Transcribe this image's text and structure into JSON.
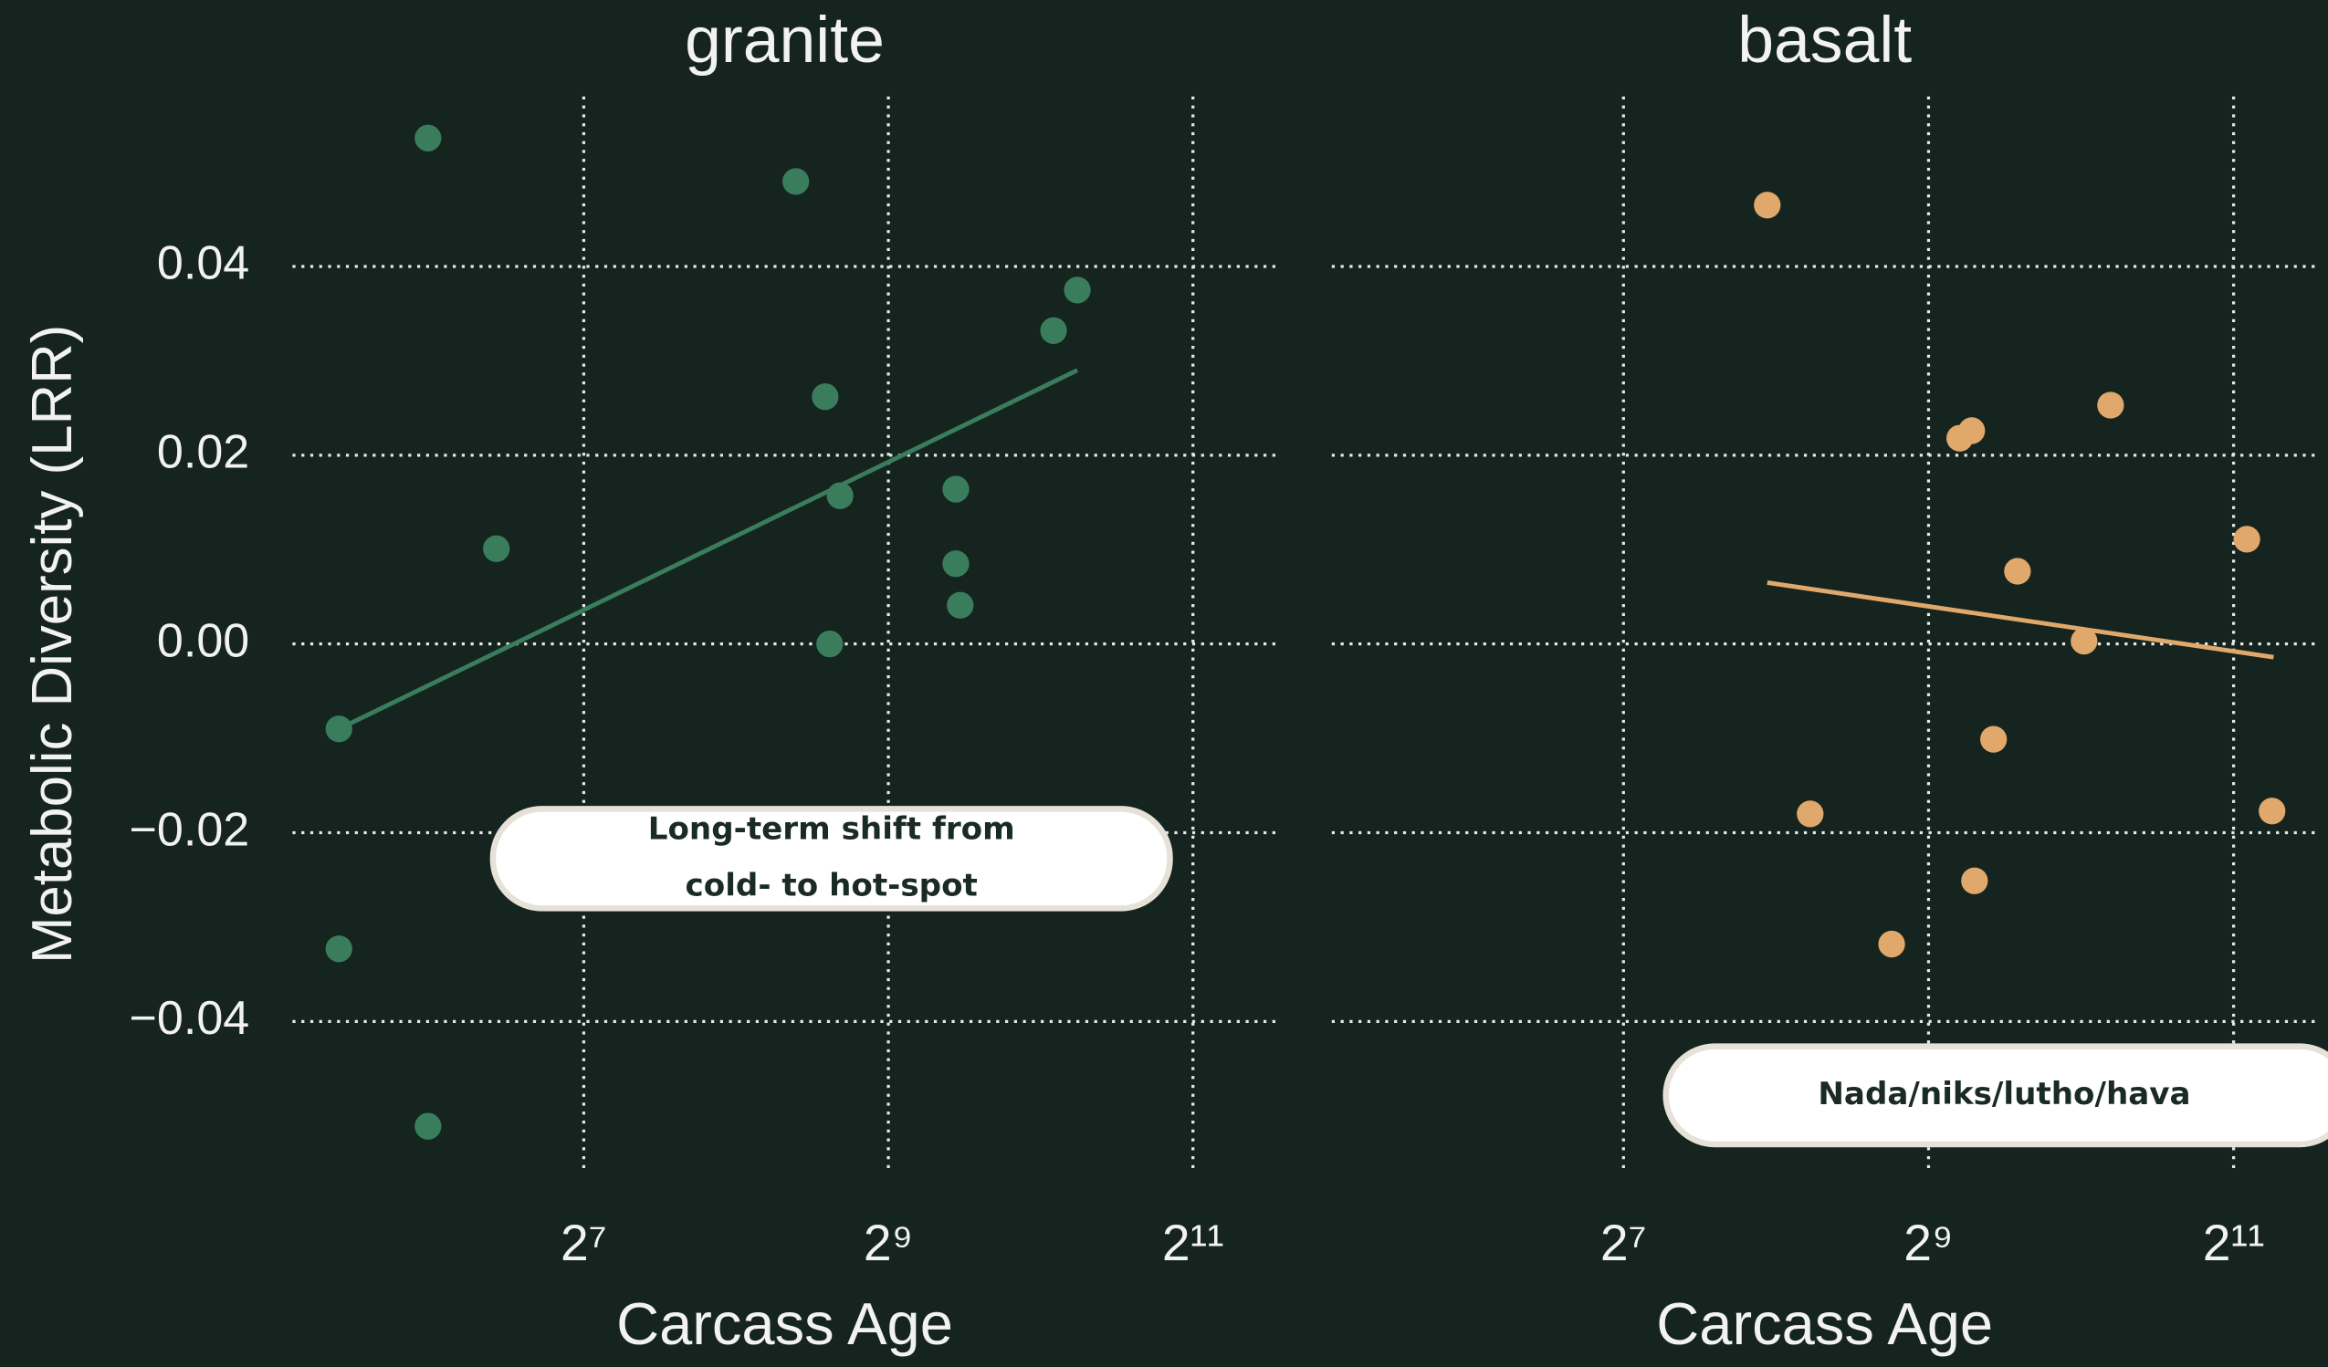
{
  "chart_data": [
    {
      "type": "scatter",
      "title": "granite",
      "xlabel": "Carcass Age",
      "ylabel": "Metabolic Diversity (LRR)",
      "x": [
        63,
        336,
        1210,
        1086,
        384,
        411,
        696,
        696,
        710,
        392,
        86,
        42,
        42,
        63
      ],
      "values": [
        0.0536,
        0.049,
        0.0375,
        0.0332,
        0.0262,
        0.0157,
        0.0164,
        0.0085,
        0.0041,
        0.0,
        0.0101,
        -0.009,
        -0.0323,
        -0.0511
      ],
      "color": "#3a7d5c",
      "trend": {
        "x": [
          42,
          1210
        ],
        "values": [
          -0.009,
          0.029
        ]
      },
      "xlog_base": 2,
      "xlim": [
        34,
        3000
      ],
      "ylim": [
        -0.056,
        0.058
      ],
      "xticks": [
        {
          "value": 128,
          "label": "2⁷"
        },
        {
          "value": 512,
          "label": "2⁹"
        },
        {
          "value": 2048,
          "label": "2¹¹"
        }
      ],
      "yticks": [
        {
          "value": -0.04,
          "label": "−0.04"
        },
        {
          "value": -0.02,
          "label": "−0.02"
        },
        {
          "value": 0,
          "label": "0.00"
        },
        0.02,
        0.04
      ],
      "show_ytick_labels": true,
      "grid": true,
      "annotation": [
        "Long-term shift from",
        "cold- to hot-spot"
      ]
    },
    {
      "type": "scatter",
      "title": "basalt",
      "xlabel": "Carcass Age",
      "x": [
        246,
        1171,
        590,
        623,
        2175,
        767,
        1038,
        688,
        299,
        2439,
        631,
        433
      ],
      "values": [
        0.0465,
        0.0253,
        0.0218,
        0.0226,
        0.0111,
        0.0077,
        0.0003,
        -0.0101,
        -0.018,
        -0.0177,
        -0.0251,
        -0.0318
      ],
      "color": "#e0a86a",
      "trend": {
        "x": [
          246,
          2456
        ],
        "values": [
          0.0065,
          -0.0014
        ]
      },
      "xlog_base": 2,
      "xlim": [
        34,
        3000
      ],
      "ylim": [
        -0.056,
        0.058
      ],
      "xticks": [
        {
          "value": 128,
          "label": "2⁷"
        },
        {
          "value": 512,
          "label": "2⁹"
        },
        {
          "value": 2048,
          "label": "2¹¹"
        }
      ],
      "yticks": [
        -0.04,
        -0.02,
        0,
        0.02,
        0.04
      ],
      "show_ytick_labels": false,
      "grid": true,
      "annotation": [
        "Nada/niks/lutho/hava"
      ]
    }
  ]
}
